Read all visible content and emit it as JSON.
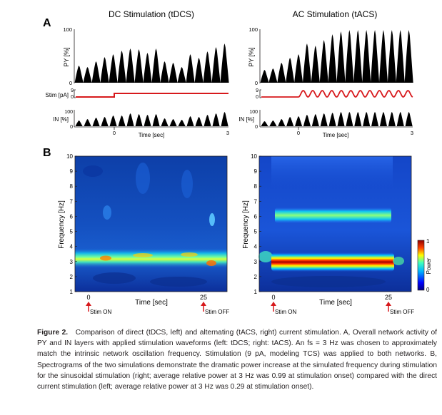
{
  "figure": {
    "panel_a_label": "A",
    "panel_b_label": "B",
    "dc_title": "DC Stimulation (tDCS)",
    "ac_title": "AC Stimulation (tACS)",
    "py_label": "PY [%]",
    "stim_label": "Stim [pA]",
    "in_label": "IN [%]",
    "py_ticks": [
      "100",
      "0"
    ],
    "stim_ticks": [
      "9",
      "0"
    ],
    "in_ticks": [
      "100",
      "0"
    ],
    "time_label_a": "Time [sec]",
    "time_start_a": "0",
    "time_end_a": "3",
    "freq_label": "Frequency [Hz]",
    "freq_ticks": [
      "10",
      "9",
      "8",
      "7",
      "6",
      "5",
      "4",
      "3",
      "2",
      "1"
    ],
    "time_label_b": "Time [sec]",
    "time_ticks_b": [
      "0",
      "25"
    ],
    "stim_on": "Stim ON",
    "stim_off": "Stim OFF",
    "colorbar_label": "Power",
    "colorbar_max": "1",
    "colorbar_min": "0",
    "colors": {
      "stim": "#d7191c",
      "trace": "#000000"
    }
  },
  "caption": {
    "label": "Figure 2.",
    "text": "Comparison of direct (tDCS, left) and alternating (tACS, right) current stimulation. A, Overall network activity of PY and IN layers with applied stimulation waveforms (left: tDCS; right: tACS). An fs = 3 Hz was chosen to approximately match the intrinsic network oscillation frequency. Stimulation (9 pA, modeling TCS) was applied to both networks. B, Spectrograms of the two simulations demonstrate the dramatic power increase at the simulated frequency during stimulation for the sinusoidal stimulation (right; average relative power at 3 Hz was 0.99 at stimulation onset) compared with the direct current stimulation (left; average relative power at 3 Hz was 0.29 at stimulation onset)."
  }
}
